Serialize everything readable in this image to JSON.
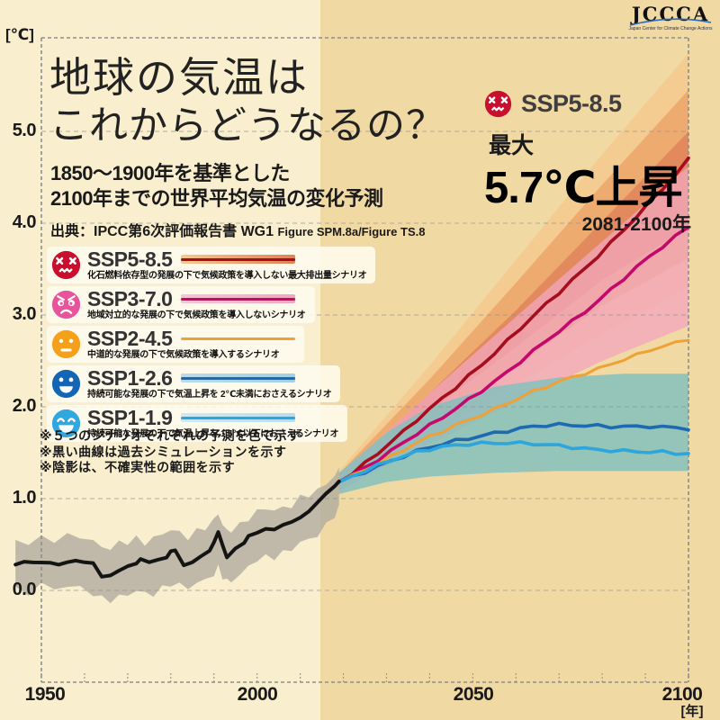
{
  "page": {
    "title_line1": "地球の気温は",
    "title_line2": "これからどうなるの？",
    "subtitle_line1": "1850～1900年を基準とした",
    "subtitle_line2": "2100年までの世界平均気温の変化予測",
    "source_prefix": "出典：IPCC第6次評価報告書 WG1",
    "source_figures": "Figure SPM.8a/Figure TS.8"
  },
  "logo": {
    "name": "JCCCA",
    "caption": "Japan Center for Climate Change Actions",
    "arc_color": "#2a6db8"
  },
  "callout": {
    "scenario": "SSP5-8.5",
    "max_label": "最大",
    "value": "5.7℃上昇",
    "period": "2081-2100年"
  },
  "notes": [
    "※５つのシナリオそれぞれの予測を色で示す",
    "※黒い曲線は過去シミュレーションを示す",
    "※陰影は、不確実性の範囲を示す"
  ],
  "axes": {
    "y_unit": "[℃]",
    "x_unit": "[年]",
    "y_ticks": [
      "5.0",
      "4.0",
      "3.0",
      "2.0",
      "1.0",
      "0.0"
    ],
    "x_ticks": [
      "1950",
      "2000",
      "2050",
      "2100"
    ]
  },
  "legend": [
    {
      "label": "SSP5-8.5",
      "desc": "化石燃料依存型の発展の下で気候政策を導入しない最大排出量シナリオ",
      "color": "#c8102e",
      "line": "#a60d1f",
      "band_from": "#f6c98f",
      "band_to": "#e0815a",
      "face": "angry"
    },
    {
      "label": "SSP3-7.0",
      "desc": "地域対立的な発展の下で気候政策を導入しないシナリオ",
      "color": "#e8549b",
      "line": "#c4096e",
      "band_from": "#f7c4d4",
      "band_to": "#f2a6bd",
      "face": "worried"
    },
    {
      "label": "SSP2-4.5",
      "desc": "中道的な発展の下で気候政策を導入するシナリオ",
      "color": "#f5a01b",
      "line": "#f0a135",
      "band_from": "",
      "band_to": "",
      "face": "neutral"
    },
    {
      "label": "SSP1-2.6",
      "desc": "持続可能な発展の下で気温上昇を 2℃未満におさえるシナリオ",
      "color": "#1565b5",
      "line": "#1d6ab2",
      "band_from": "#b8dcec",
      "band_to": "#9fd0e8",
      "face": "happy"
    },
    {
      "label": "SSP1-1.9",
      "desc": "持続可能な発展の下で気温上昇を 1.5℃以下におさえるシナリオ",
      "color": "#2fa7e0",
      "line": "#2ca6dd",
      "band_from": "#cfe9f5",
      "band_to": "#b5def1",
      "face": "laugh"
    }
  ],
  "chart_data": {
    "type": "line",
    "title": "1850～1900年を基準とした2100年までの世界平均気温の変化予測",
    "xlabel": "年",
    "ylabel": "℃",
    "x_range": [
      1944,
      2100
    ],
    "y_axis_ticks": [
      0,
      1,
      2,
      3,
      4,
      5
    ],
    "x_axis_ticks": [
      1950,
      2000,
      2050,
      2100
    ],
    "future_start_year": 2015,
    "colors": {
      "bg_left": "#f9eecd",
      "bg_right": "#f1d9a3",
      "grid": "#8f8f8f",
      "border": "#8d8d8d",
      "hist_line": "#141414",
      "hist_band": "#b1aba0"
    },
    "historical": {
      "name": "過去シミュレーション",
      "years": [
        1944,
        1946,
        1948,
        1950,
        1952,
        1954,
        1956,
        1958,
        1960,
        1962,
        1964,
        1966,
        1968,
        1970,
        1972,
        1973,
        1975,
        1977,
        1979,
        1980,
        1981,
        1983,
        1985,
        1987,
        1989,
        1990,
        1991,
        1992,
        1993,
        1995,
        1997,
        1998,
        2000,
        2002,
        2004,
        2006,
        2008,
        2010,
        2012,
        2014,
        2016,
        2018,
        2019
      ],
      "values": [
        0.28,
        0.32,
        0.3,
        0.3,
        0.31,
        0.28,
        0.3,
        0.33,
        0.31,
        0.29,
        0.15,
        0.17,
        0.21,
        0.26,
        0.3,
        0.34,
        0.3,
        0.34,
        0.36,
        0.42,
        0.44,
        0.28,
        0.3,
        0.37,
        0.44,
        0.52,
        0.63,
        0.5,
        0.36,
        0.45,
        0.52,
        0.6,
        0.62,
        0.67,
        0.67,
        0.71,
        0.74,
        0.8,
        0.86,
        0.95,
        1.06,
        1.14,
        1.18
      ],
      "band_years": [
        1944,
        1947,
        1950,
        1953,
        1956,
        1959,
        1962,
        1964,
        1966,
        1968,
        1970,
        1972,
        1974,
        1976,
        1978,
        1980,
        1982,
        1984,
        1986,
        1988,
        1990,
        1991,
        1992,
        1993,
        1994,
        1996,
        1998,
        2000,
        2002,
        2004,
        2006,
        2008,
        2010,
        2012,
        2014,
        2016,
        2018,
        2019
      ],
      "band_upper": [
        0.55,
        0.53,
        0.58,
        0.54,
        0.57,
        0.6,
        0.55,
        0.48,
        0.44,
        0.5,
        0.54,
        0.58,
        0.52,
        0.55,
        0.6,
        0.68,
        0.64,
        0.58,
        0.62,
        0.68,
        0.78,
        0.85,
        0.72,
        0.62,
        0.66,
        0.72,
        0.8,
        0.85,
        0.87,
        0.88,
        0.91,
        0.94,
        0.99,
        1.03,
        1.09,
        1.18,
        1.26,
        1.3
      ],
      "band_lower": [
        0.02,
        0.0,
        0.05,
        0.01,
        0.03,
        0.05,
        -0.02,
        -0.1,
        -0.12,
        -0.08,
        -0.02,
        0.0,
        -0.04,
        -0.06,
        0.02,
        0.1,
        0.06,
        0.02,
        0.06,
        0.12,
        0.2,
        0.25,
        0.14,
        0.08,
        0.12,
        0.18,
        0.26,
        0.32,
        0.35,
        0.38,
        0.42,
        0.45,
        0.5,
        0.55,
        0.62,
        0.72,
        0.82,
        0.88
      ]
    },
    "proj_years": [
      2019,
      2022,
      2025,
      2028,
      2031,
      2034,
      2037,
      2040,
      2043,
      2046,
      2049,
      2052,
      2055,
      2058,
      2061,
      2064,
      2067,
      2070,
      2073,
      2076,
      2079,
      2082,
      2085,
      2088,
      2091,
      2094,
      2097,
      2100
    ],
    "series": [
      {
        "name": "SSP5-8.5",
        "color": "#a60d1f",
        "width": 3.6,
        "values": [
          1.18,
          1.28,
          1.39,
          1.5,
          1.62,
          1.73,
          1.85,
          1.97,
          2.09,
          2.21,
          2.34,
          2.46,
          2.59,
          2.72,
          2.85,
          2.98,
          3.11,
          3.24,
          3.38,
          3.51,
          3.65,
          3.79,
          3.93,
          4.07,
          4.22,
          4.37,
          4.52,
          4.7
        ]
      },
      {
        "name": "SSP3-7.0",
        "color": "#c4096e",
        "width": 3.6,
        "values": [
          1.18,
          1.26,
          1.34,
          1.43,
          1.52,
          1.61,
          1.7,
          1.79,
          1.88,
          1.98,
          2.08,
          2.18,
          2.28,
          2.38,
          2.49,
          2.6,
          2.71,
          2.82,
          2.93,
          3.04,
          3.16,
          3.28,
          3.4,
          3.52,
          3.63,
          3.74,
          3.85,
          3.96
        ]
      },
      {
        "name": "SSP2-4.5",
        "color": "#f0a135",
        "width": 3.0,
        "values": [
          1.18,
          1.25,
          1.32,
          1.39,
          1.46,
          1.53,
          1.6,
          1.67,
          1.73,
          1.8,
          1.86,
          1.92,
          1.98,
          2.04,
          2.1,
          2.16,
          2.21,
          2.27,
          2.32,
          2.37,
          2.42,
          2.47,
          2.52,
          2.56,
          2.61,
          2.65,
          2.69,
          2.74
        ]
      },
      {
        "name": "SSP1-2.6",
        "color": "#1d6ab2",
        "width": 3.6,
        "values": [
          1.18,
          1.24,
          1.3,
          1.36,
          1.41,
          1.46,
          1.51,
          1.55,
          1.59,
          1.63,
          1.66,
          1.69,
          1.72,
          1.74,
          1.76,
          1.78,
          1.79,
          1.8,
          1.8,
          1.8,
          1.8,
          1.79,
          1.79,
          1.78,
          1.78,
          1.77,
          1.77,
          1.76
        ]
      },
      {
        "name": "SSP1-1.9",
        "color": "#2ca6dd",
        "width": 3.6,
        "values": [
          1.18,
          1.25,
          1.31,
          1.37,
          1.42,
          1.46,
          1.5,
          1.53,
          1.56,
          1.58,
          1.6,
          1.61,
          1.61,
          1.61,
          1.6,
          1.59,
          1.58,
          1.57,
          1.56,
          1.55,
          1.54,
          1.53,
          1.52,
          1.51,
          1.5,
          1.5,
          1.49,
          1.49
        ]
      }
    ],
    "bands": [
      {
        "name": "SSP5-8.5 range outer",
        "color": "#f5c78c",
        "opacity": 0.78,
        "x": [
          2019,
          2040,
          2060,
          2080,
          2100
        ],
        "upper": [
          1.3,
          2.45,
          3.6,
          4.75,
          5.85
        ],
        "lower": [
          1.06,
          1.7,
          2.25,
          2.8,
          3.3
        ]
      },
      {
        "name": "SSP5-8.5 range mid",
        "color": "#eca367",
        "opacity": 0.8,
        "x": [
          2019,
          2040,
          2060,
          2080,
          2100
        ],
        "upper": [
          1.27,
          2.3,
          3.35,
          4.42,
          5.45
        ],
        "lower": [
          1.09,
          1.82,
          2.45,
          3.1,
          3.62
        ]
      },
      {
        "name": "SSP5-8.5 range core",
        "color": "#e0815a",
        "opacity": 0.8,
        "x": [
          2019,
          2040,
          2060,
          2080,
          2100
        ],
        "upper": [
          1.24,
          2.15,
          3.05,
          4.02,
          5.0
        ],
        "lower": [
          1.12,
          1.95,
          2.65,
          3.38,
          3.95
        ]
      },
      {
        "name": "SSP3-7.0 range",
        "color": "#f2a6bd",
        "opacity": 0.78,
        "x": [
          2019,
          2040,
          2060,
          2080,
          2100
        ],
        "upper": [
          1.26,
          2.15,
          2.98,
          3.8,
          4.62
        ],
        "lower": [
          1.08,
          1.6,
          2.05,
          2.5,
          2.88
        ]
      },
      {
        "name": "SSP1-2.6 / SSP1-1.9 range",
        "color": "#85c0bd",
        "opacity": 0.85,
        "x": [
          2019,
          2030,
          2040,
          2055,
          2070,
          2085,
          2100
        ],
        "upper": [
          1.28,
          1.72,
          2.0,
          2.22,
          2.32,
          2.36,
          2.36
        ],
        "lower": [
          1.05,
          1.18,
          1.24,
          1.28,
          1.3,
          1.3,
          1.3
        ]
      }
    ],
    "annotation": {
      "scenario": "SSP5-8.5",
      "max_rise_c": 5.7,
      "period": "2081-2100"
    }
  }
}
